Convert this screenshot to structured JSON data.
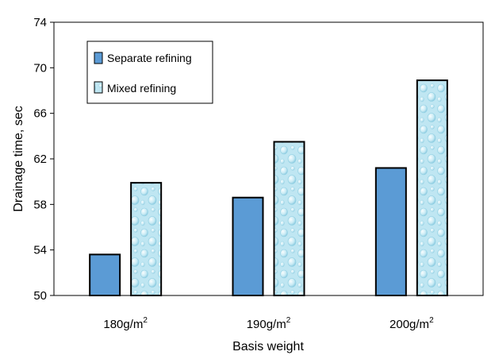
{
  "chart_data": {
    "type": "bar",
    "categories": [
      "180g/m",
      "190g/m",
      "200g/m"
    ],
    "category_superscript": "2",
    "series": [
      {
        "name": "Separate refining",
        "values": [
          53.6,
          58.6,
          61.2
        ],
        "color": "#5b9bd5",
        "pattern": "solid"
      },
      {
        "name": "Mixed refining",
        "values": [
          59.9,
          63.5,
          68.9
        ],
        "color": "#bfe6f2",
        "pattern": "water-droplets"
      }
    ],
    "xlabel": "Basis  weight",
    "ylabel": "Drainage time, sec",
    "ylim": [
      50,
      74
    ],
    "yticks": [
      50,
      54,
      58,
      62,
      66,
      70,
      74
    ],
    "grid": false,
    "legend_position": "top-left",
    "legend_labels": [
      "Separate  refining",
      "Mixed  refining"
    ]
  }
}
